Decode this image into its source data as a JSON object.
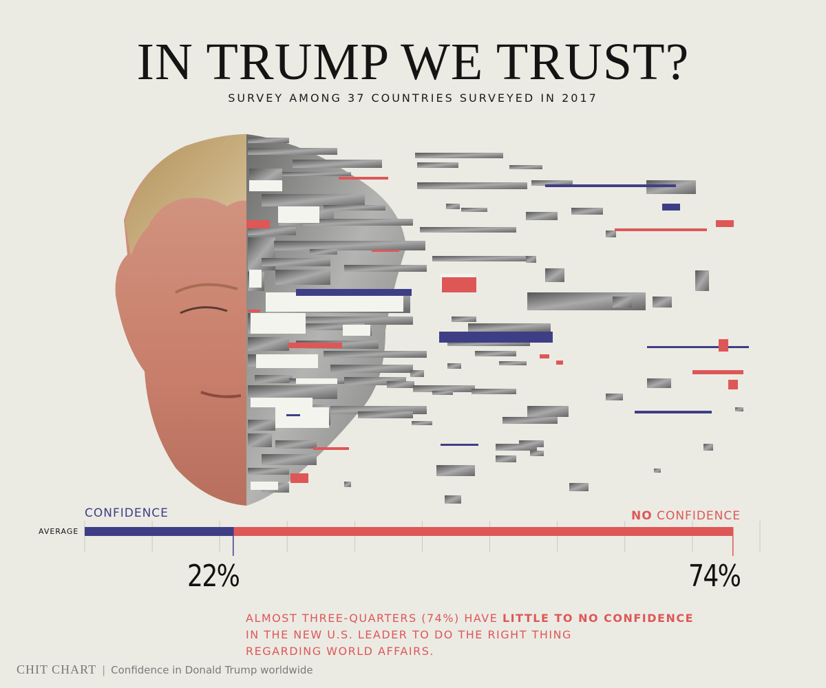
{
  "title": "IN TRUMP WE TRUST?",
  "subtitle": "SURVEY AMONG 37 COUNTRIES SURVEYED IN 2017",
  "colors": {
    "confidence": "#3e3e86",
    "no_confidence": "#de5757",
    "background": "#ebebe4"
  },
  "chart_data": {
    "type": "bar",
    "categories": [
      "AVERAGE"
    ],
    "series": [
      {
        "name": "CONFIDENCE",
        "values": [
          22
        ]
      },
      {
        "name": "NO CONFIDENCE",
        "values": [
          74
        ]
      }
    ],
    "value_labels": [
      "22%",
      "74%"
    ],
    "xlim": [
      0,
      100
    ],
    "grid": true
  },
  "labels": {
    "confidence": "CONFIDENCE",
    "no_prefix": "NO",
    "no_suffix": " CONFIDENCE",
    "average": "AVERAGE"
  },
  "annotation": {
    "line1_pre": "ALMOST THREE-QUARTERS (74%) HAVE ",
    "line1_bold": "LITTLE TO NO CONFIDENCE",
    "line2": "IN THE NEW U.S. LEADER TO DO THE RIGHT THING",
    "line3": "REGARDING WORLD AFFAIRS."
  },
  "footer": {
    "brand": "CHIT CHART",
    "text": "Confidence in Donald Trump worldwide"
  }
}
